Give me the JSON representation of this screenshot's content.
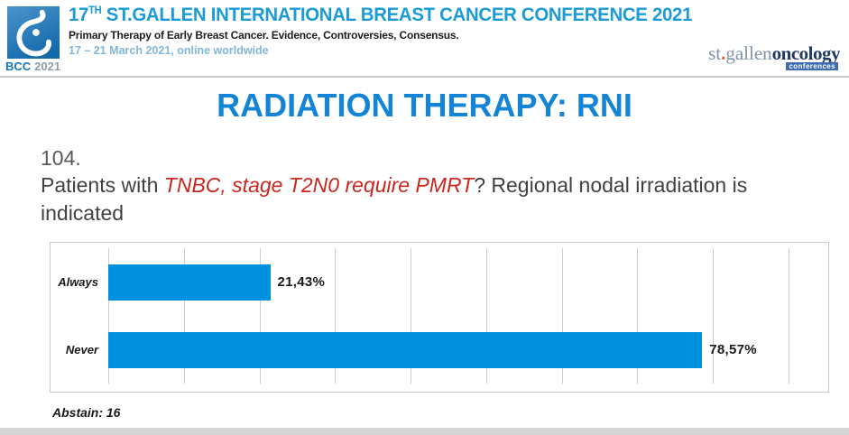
{
  "header": {
    "logo": {
      "icon": "bcc-drop-icon",
      "bcc": "BCC",
      "year": "2021",
      "box_color": "#1268A8"
    },
    "title": {
      "num": "17",
      "sup": "TH",
      "rest": " ST.GALLEN INTERNATIONAL BREAST CANCER CONFERENCE 2021"
    },
    "subtitle": "Primary Therapy of Early Breast Cancer. Evidence, Controversies, Consensus.",
    "date_line": "17 – 21 March 2021, online worldwide",
    "brand": {
      "st": "st",
      "dot": ".",
      "gallen": "gallen",
      "oncology": "oncology",
      "badge": "conferences"
    }
  },
  "slide": {
    "title": "RADIATION THERAPY: RNI",
    "question_number": "104.",
    "question": {
      "prefix": "Patients with ",
      "highlight": "TNBC, stage T2N0 require PMRT",
      "suffix": "? Regional nodal irradiation is indicated"
    },
    "abstain_note": "Abstain: 16"
  },
  "chart_data": {
    "type": "bar",
    "orientation": "horizontal",
    "title": "",
    "xlabel": "",
    "ylabel": "",
    "categories": [
      "Always",
      "Never"
    ],
    "values": [
      21.43,
      78.57
    ],
    "value_labels": [
      "21,43%",
      "78,57%"
    ],
    "xlim": [
      0,
      91.2
    ],
    "grid_interval": 10,
    "grid": true,
    "legend": false,
    "bar_color": "#0090E0"
  },
  "colors": {
    "header_title_blue": "#1B9BD7",
    "date_line_blue": "#82B7DA",
    "slide_title_blue": "#1484D6",
    "question_gray": "#414042",
    "highlight_red": "#C9271E",
    "bar_blue": "#0090E0",
    "border_gray": "#C9C9C9",
    "brand_gray_blue": "#7E93AB",
    "brand_navy": "#223A63",
    "brand_orange": "#D9603B"
  }
}
